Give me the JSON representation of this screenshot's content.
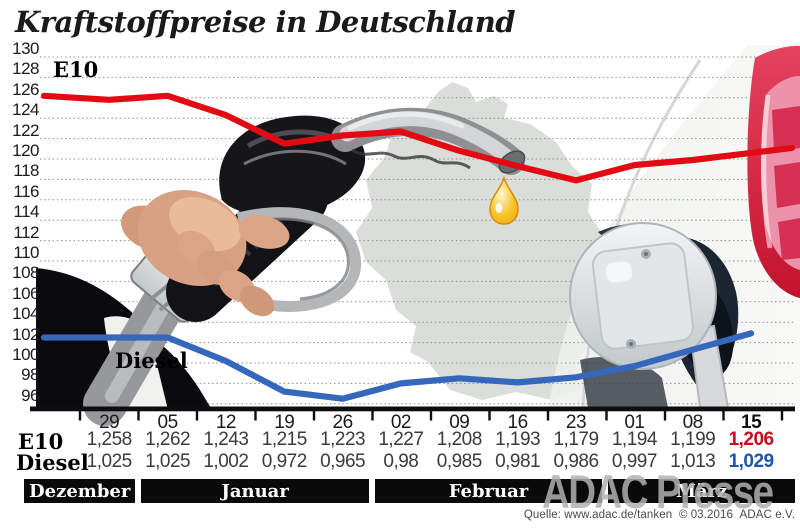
{
  "title": "Kraftstoffpreise in Deutschland",
  "watermark": "ADAC Presse",
  "source": "Quelle: www.adac.de/tanken  © 03.2016  ADAC e.V.",
  "colors": {
    "e10_line": "#e30b13",
    "e10_label": "#c80c22",
    "diesel_line": "#3567bd",
    "diesel_label": "#1d55ae",
    "grid": "#8f8f8f",
    "axis": "#0d0d0d",
    "month_bar_bg": "#0a0a0a",
    "month_bar_text": "#ffffff",
    "value_text": "#3b3b3b",
    "tick_text": "#1c1c1c"
  },
  "chart_data": {
    "type": "line",
    "title": "Kraftstoffpreise in Deutschland",
    "ylim": [
      96,
      130
    ],
    "ytick_step": 2,
    "grid": "dotted-horizontal",
    "legend_position": "on-chart",
    "x_tick_labels": [
      "29",
      "05",
      "12",
      "19",
      "26",
      "02",
      "09",
      "16",
      "23",
      "01",
      "08",
      "15"
    ],
    "months": [
      {
        "label": "Dezember",
        "from_col": 0,
        "to_col": 0
      },
      {
        "label": "Januar",
        "from_col": 1,
        "to_col": 4
      },
      {
        "label": "Februar",
        "from_col": 5,
        "to_col": 8
      },
      {
        "label": "März",
        "from_col": 9,
        "to_col": 11
      }
    ],
    "series": [
      {
        "name": "E10",
        "color": "#e30b13",
        "values": [
          125.8,
          126.2,
          124.3,
          121.5,
          122.3,
          122.7,
          120.8,
          119.3,
          117.9,
          119.4,
          119.9,
          120.6
        ],
        "display": [
          "1,258",
          "1,262",
          "1,243",
          "1,215",
          "1,223",
          "1,227",
          "1,208",
          "1,193",
          "1,179",
          "1,194",
          "1,199",
          "1,206"
        ]
      },
      {
        "name": "Diesel",
        "color": "#3567bd",
        "values": [
          102.5,
          102.5,
          100.2,
          97.2,
          96.5,
          98.0,
          98.5,
          98.1,
          98.6,
          99.7,
          101.3,
          102.9
        ],
        "display": [
          "1,025",
          "1,025",
          "1,002",
          "0,972",
          "0,965",
          "0,98",
          "0,985",
          "0,981",
          "0,986",
          "0,997",
          "1,013",
          "1,029"
        ]
      }
    ]
  }
}
